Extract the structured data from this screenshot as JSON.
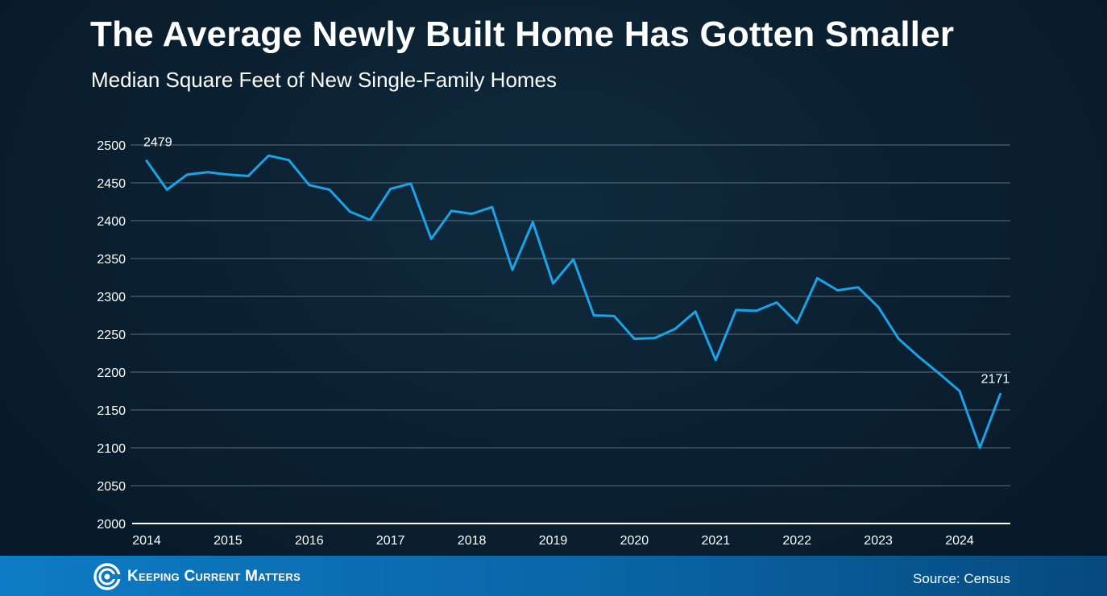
{
  "header": {
    "title": "The Average Newly Built Home Has Gotten Smaller",
    "subtitle": "Median Square Feet of New Single-Family Homes"
  },
  "footer": {
    "brand": "Keeping Current Matters",
    "source": "Source: Census"
  },
  "colors": {
    "line": "#1aa3e8",
    "grid": "#5a6f80",
    "text": "#ffffff"
  },
  "chart_data": {
    "type": "line",
    "title": "The Average Newly Built Home Has Gotten Smaller",
    "subtitle": "Median Square Feet of New Single-Family Homes",
    "xlabel": "",
    "ylabel": "",
    "ylim": [
      2000,
      2500
    ],
    "yticks": [
      2000,
      2050,
      2100,
      2150,
      2200,
      2250,
      2300,
      2350,
      2400,
      2450,
      2500
    ],
    "xticks": [
      "2014",
      "2015",
      "2016",
      "2017",
      "2018",
      "2019",
      "2020",
      "2021",
      "2022",
      "2023",
      "2024"
    ],
    "grid": true,
    "quarters_per_year": 4,
    "series": [
      {
        "values": [
          2479,
          2441,
          2461,
          2464,
          2461,
          2459,
          2486,
          2480,
          2447,
          2441,
          2412,
          2401,
          2442,
          2449,
          2376,
          2413,
          2409,
          2418,
          2335,
          2398,
          2317,
          2349,
          2275,
          2274,
          2244,
          2245,
          2257,
          2280,
          2216,
          2282,
          2281,
          2292,
          2265,
          2324,
          2308,
          2312,
          2286,
          2244,
          2220,
          2198,
          2175,
          2100,
          2171
        ]
      }
    ],
    "annotations": [
      {
        "index": 0,
        "text": "2479"
      },
      {
        "index": 42,
        "text": "2171"
      }
    ]
  }
}
